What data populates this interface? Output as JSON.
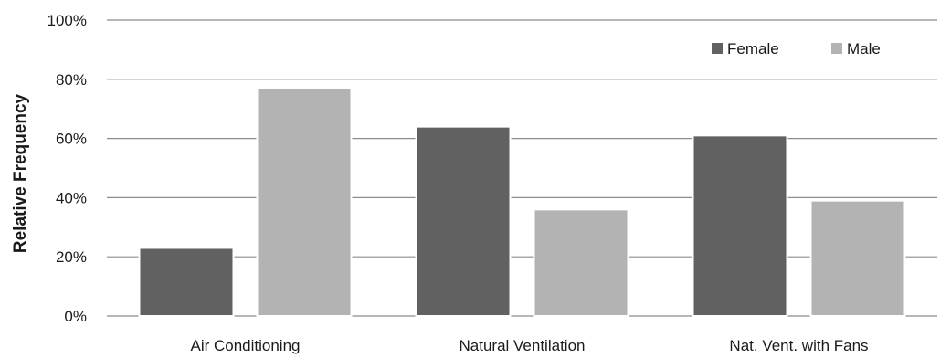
{
  "chart_data": {
    "type": "bar",
    "title": "",
    "xlabel": "",
    "ylabel": "Relative Frequency",
    "categories": [
      "Air Conditioning",
      "Natural Ventilation",
      "Nat. Vent. with Fans"
    ],
    "series": [
      {
        "name": "Female",
        "values": [
          23,
          64,
          61
        ],
        "color": "#616161"
      },
      {
        "name": "Male",
        "values": [
          77,
          36,
          39
        ],
        "color": "#b3b3b3"
      }
    ],
    "ylim": [
      0,
      100
    ],
    "yticks": [
      0,
      20,
      40,
      60,
      80,
      100
    ],
    "ytick_labels": [
      "0%",
      "20%",
      "40%",
      "60%",
      "80%",
      "100%"
    ],
    "grid": true,
    "legend_position": "top-right",
    "gridline_color": "#8c8c8c"
  }
}
